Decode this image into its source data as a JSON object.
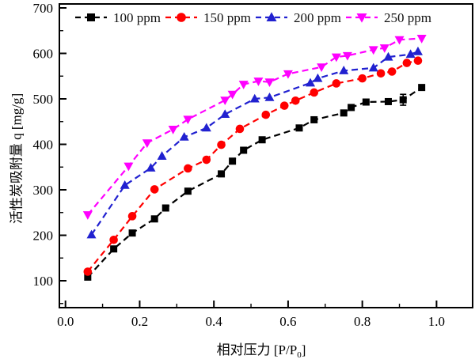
{
  "chart_data": {
    "type": "line",
    "title": "",
    "xlabel": "相对压力 [P/P0]",
    "xlabel_parts": {
      "main": "相对压力 [P/P",
      "sub": "0",
      "end": "]"
    },
    "ylabel": "活性炭吸附量 q [mg/g]",
    "xlim": [
      0.0,
      1.1
    ],
    "ylim": [
      40,
      710
    ],
    "grid": false,
    "legend_position": "top-inside-horizontal",
    "x_major_ticks": [
      0.0,
      0.2,
      0.4,
      0.6,
      0.8,
      1.0
    ],
    "x_tick_labels": [
      "0.0",
      "0.2",
      "0.4",
      "0.6",
      "0.8",
      "1.0"
    ],
    "x_minor_ticks": [
      0.1,
      0.3,
      0.5,
      0.7,
      0.9
    ],
    "y_major_ticks": [
      100,
      200,
      300,
      400,
      500,
      600,
      700
    ],
    "y_tick_labels": [
      "100",
      "200",
      "300",
      "400",
      "500",
      "600",
      "700"
    ],
    "y_minor_ticks": [
      50,
      150,
      250,
      350,
      450,
      550,
      650
    ],
    "series": [
      {
        "name": "100 ppm",
        "color": "#000000",
        "marker": "square",
        "linestyle": "dashed",
        "points": [
          [
            0.06,
            108
          ],
          [
            0.13,
            170
          ],
          [
            0.18,
            205
          ],
          [
            0.24,
            236
          ],
          [
            0.27,
            260
          ],
          [
            0.33,
            297
          ],
          [
            0.42,
            335
          ],
          [
            0.45,
            363
          ],
          [
            0.48,
            387
          ],
          [
            0.53,
            410
          ],
          [
            0.63,
            436
          ],
          [
            0.67,
            454
          ],
          [
            0.75,
            469
          ],
          [
            0.77,
            481
          ],
          [
            0.81,
            493
          ],
          [
            0.87,
            494
          ],
          [
            0.91,
            498
          ],
          [
            0.96,
            525
          ]
        ]
      },
      {
        "name": "150 ppm",
        "color": "#ff0000",
        "marker": "circle",
        "linestyle": "dashed",
        "points": [
          [
            0.06,
            120
          ],
          [
            0.13,
            190
          ],
          [
            0.18,
            242
          ],
          [
            0.24,
            301
          ],
          [
            0.33,
            347
          ],
          [
            0.38,
            366
          ],
          [
            0.42,
            399
          ],
          [
            0.47,
            434
          ],
          [
            0.54,
            465
          ],
          [
            0.59,
            485
          ],
          [
            0.62,
            496
          ],
          [
            0.67,
            514
          ],
          [
            0.73,
            534
          ],
          [
            0.8,
            545
          ],
          [
            0.85,
            556
          ],
          [
            0.88,
            560
          ],
          [
            0.92,
            579
          ],
          [
            0.95,
            584
          ]
        ]
      },
      {
        "name": "200 ppm",
        "color": "#2121d0",
        "marker": "triangle-up",
        "linestyle": "dashed",
        "points": [
          [
            0.07,
            201
          ],
          [
            0.16,
            310
          ],
          [
            0.23,
            348
          ],
          [
            0.26,
            374
          ],
          [
            0.32,
            416
          ],
          [
            0.38,
            436
          ],
          [
            0.43,
            466
          ],
          [
            0.51,
            500
          ],
          [
            0.55,
            503
          ],
          [
            0.66,
            535
          ],
          [
            0.68,
            545
          ],
          [
            0.75,
            562
          ],
          [
            0.83,
            568
          ],
          [
            0.87,
            592
          ],
          [
            0.93,
            598
          ],
          [
            0.95,
            604
          ]
        ]
      },
      {
        "name": "250 ppm",
        "color": "#ff00ff",
        "marker": "triangle-down",
        "linestyle": "dashed",
        "points": [
          [
            0.06,
            245
          ],
          [
            0.17,
            352
          ],
          [
            0.22,
            403
          ],
          [
            0.29,
            433
          ],
          [
            0.33,
            455
          ],
          [
            0.43,
            497
          ],
          [
            0.45,
            510
          ],
          [
            0.48,
            532
          ],
          [
            0.52,
            539
          ],
          [
            0.55,
            537
          ],
          [
            0.6,
            555
          ],
          [
            0.69,
            570
          ],
          [
            0.73,
            592
          ],
          [
            0.76,
            595
          ],
          [
            0.83,
            608
          ],
          [
            0.86,
            612
          ],
          [
            0.9,
            630
          ],
          [
            0.96,
            633
          ]
        ]
      }
    ],
    "error_bars": [
      {
        "series": "100 ppm",
        "x": 0.91,
        "y": 498,
        "yerr": 12
      }
    ]
  }
}
